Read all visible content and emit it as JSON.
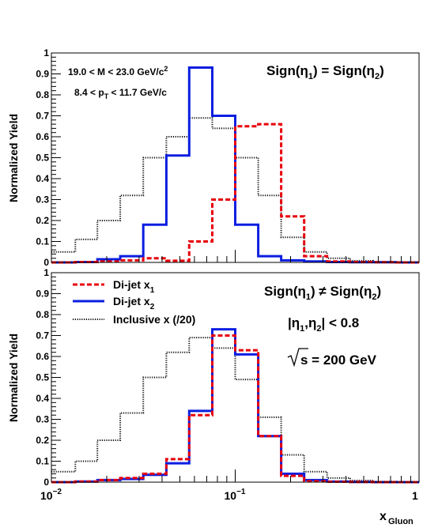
{
  "chart_data": [
    {
      "type": "line",
      "panel": "top",
      "ylabel": "Normalized Yield",
      "xlabel": "",
      "x_scale": "log",
      "xlim": [
        0.01,
        1
      ],
      "ylim": [
        0,
        1
      ],
      "yticks": [
        "0",
        "0.1",
        "0.2",
        "0.3",
        "0.4",
        "0.5",
        "0.6",
        "0.7",
        "0.8",
        "0.9",
        "1"
      ],
      "annotations": {
        "mass": "19.0 < M < 23.0 GeV/c²",
        "pt": "8.4 < pT < 11.7 GeV/c",
        "sign": "Sign(η1) = Sign(η2)"
      },
      "bin_edges": [
        0.01,
        0.0135,
        0.0178,
        0.0237,
        0.0316,
        0.0422,
        0.0562,
        0.075,
        0.1,
        0.1334,
        0.1778,
        0.2371,
        0.3162,
        0.4217,
        0.5623,
        0.75,
        1.0
      ],
      "series": [
        {
          "name": "Di-jet x1",
          "color": "#e8000b",
          "style": "dashed",
          "values": [
            0,
            0.002,
            0.005,
            0.01,
            0.02,
            0.008,
            0.1,
            0.3,
            0.65,
            0.66,
            0.22,
            0.03,
            0.005,
            0.002,
            0.001,
            0.0
          ]
        },
        {
          "name": "Di-jet x2",
          "color": "#0a1ee0",
          "style": "solid",
          "values": [
            0,
            0.002,
            0.015,
            0.03,
            0.18,
            0.51,
            0.93,
            0.7,
            0.18,
            0.03,
            0.01,
            0.005,
            0.002,
            0.001,
            0.001,
            0.0
          ]
        },
        {
          "name": "Inclusive x (/20)",
          "color": "#111111",
          "style": "dotted",
          "values": [
            0.05,
            0.11,
            0.2,
            0.32,
            0.5,
            0.6,
            0.69,
            0.64,
            0.5,
            0.32,
            0.12,
            0.05,
            0.02,
            0.008,
            0.003,
            0.001
          ]
        }
      ]
    },
    {
      "type": "line",
      "panel": "bottom",
      "ylabel": "Normalized Yield",
      "xlabel": "xGluon",
      "x_scale": "log",
      "xlim": [
        0.01,
        1
      ],
      "ylim": [
        0,
        1
      ],
      "yticks": [
        "0",
        "0.1",
        "0.2",
        "0.3",
        "0.4",
        "0.5",
        "0.6",
        "0.7",
        "0.8",
        "0.9",
        "1"
      ],
      "xticks": [
        "10⁻²",
        "10⁻¹",
        "1"
      ],
      "annotations": {
        "sign": "Sign(η1) ≠ Sign(η2)",
        "eta": "|η1,η2| < 0.8",
        "sqrts": "√s = 200 GeV"
      },
      "bin_edges": [
        0.01,
        0.0135,
        0.0178,
        0.0237,
        0.0316,
        0.0422,
        0.0562,
        0.075,
        0.1,
        0.1334,
        0.1778,
        0.2371,
        0.3162,
        0.4217,
        0.5623,
        0.75,
        1.0
      ],
      "series": [
        {
          "name": "Di-jet x1",
          "color": "#e8000b",
          "style": "dashed",
          "values": [
            0,
            0.003,
            0.01,
            0.02,
            0.04,
            0.11,
            0.32,
            0.7,
            0.63,
            0.22,
            0.03,
            0.005,
            0.002,
            0.001,
            0.0,
            0.0
          ]
        },
        {
          "name": "Di-jet x2",
          "color": "#0a1ee0",
          "style": "solid",
          "values": [
            0,
            0.003,
            0.01,
            0.015,
            0.035,
            0.09,
            0.34,
            0.73,
            0.61,
            0.22,
            0.04,
            0.01,
            0.003,
            0.001,
            0.0,
            0.0
          ]
        },
        {
          "name": "Inclusive x (/20)",
          "color": "#111111",
          "style": "dotted",
          "values": [
            0.05,
            0.1,
            0.2,
            0.33,
            0.5,
            0.62,
            0.69,
            0.64,
            0.49,
            0.31,
            0.13,
            0.05,
            0.02,
            0.008,
            0.003,
            0.001
          ]
        }
      ],
      "legend": {
        "position": "top-left",
        "entries": [
          "Di-jet x1",
          "Di-jet x2",
          "Inclusive x (/20)"
        ]
      }
    }
  ]
}
